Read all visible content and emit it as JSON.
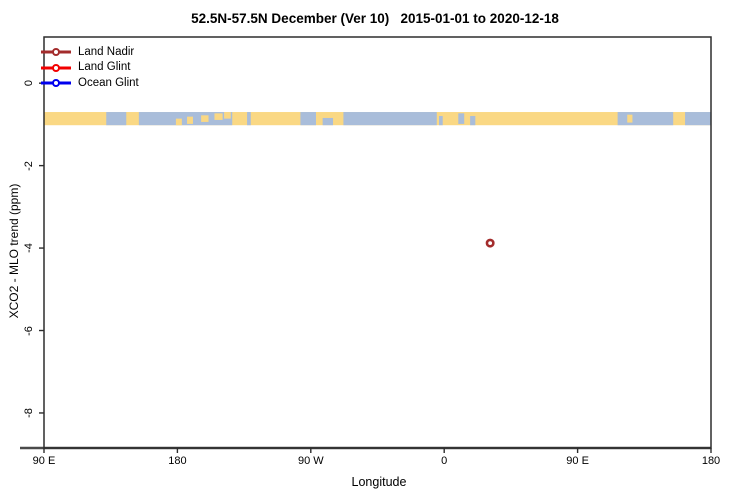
{
  "title": "52.5N-57.5N December (Ver 10)   2015-01-01 to 2020-12-18",
  "axes": {
    "xlabel": "Longitude",
    "ylabel": "XCO2 - MLO trend (ppm)"
  },
  "legend": {
    "items": [
      {
        "label": "Land Nadir",
        "color": "#A32C2C",
        "marker": "open-circle"
      },
      {
        "label": "Land Glint",
        "color": "#F20000",
        "marker": "open-circle"
      },
      {
        "label": "Ocean Glint",
        "color": "#0000EE",
        "marker": "open-circle"
      }
    ]
  },
  "chart_data": {
    "type": "scatter",
    "title": "52.5N-57.5N December (Ver 10)   2015-01-01 to 2020-12-18",
    "xlabel": "Longitude",
    "ylabel": "XCO2 - MLO trend (ppm)",
    "grid": false,
    "legend_position": "top-left",
    "x_axis": {
      "domain": [
        90,
        540
      ],
      "wraps_longitude": true,
      "ticks": [
        {
          "v": 90,
          "label": "90 E"
        },
        {
          "v": 180,
          "label": "180"
        },
        {
          "v": 270,
          "label": "90 W"
        },
        {
          "v": 360,
          "label": "0"
        },
        {
          "v": 450,
          "label": "90 E"
        },
        {
          "v": 540,
          "label": "180"
        }
      ]
    },
    "y_axis": {
      "domain": [
        1.12,
        -8.85
      ],
      "ticks": [
        {
          "v": 0,
          "label": "0"
        },
        {
          "v": -2,
          "label": "-2"
        },
        {
          "v": -4,
          "label": "-4"
        },
        {
          "v": -6,
          "label": "-6"
        },
        {
          "v": -8,
          "label": "-8"
        }
      ]
    },
    "series": [
      {
        "name": "Land Nadir",
        "color": "#A32C2C",
        "marker": "open-circle",
        "points": [
          {
            "x": 391,
            "lon_east_deg": 31,
            "y": -3.88
          }
        ]
      },
      {
        "name": "Land Glint",
        "color": "#F20000",
        "marker": "open-circle",
        "points": []
      },
      {
        "name": "Ocean Glint",
        "color": "#0000EE",
        "marker": "open-circle",
        "points": []
      }
    ],
    "map_band": {
      "description": "world coastline strip for 52.5N-57.5N",
      "y_top": -0.7,
      "y_bottom": -1.02,
      "land_color": "#FAD884",
      "ocean_color": "#A9BDDA",
      "ocean_segments": [
        {
          "x0": 132,
          "x1": 145.5
        },
        {
          "x0": 154,
          "x1": 217
        },
        {
          "x0": 227,
          "x1": 229.5
        },
        {
          "x0": 263,
          "x1": 273.5
        },
        {
          "x0": 278,
          "x1": 285,
          "t0": 0.45,
          "t1": 1
        },
        {
          "x0": 292,
          "x1": 355
        },
        {
          "x0": 356.5,
          "x1": 359,
          "t0": 0.3,
          "t1": 1
        },
        {
          "x0": 369.5,
          "x1": 373.5,
          "t0": 0.1,
          "t1": 0.9
        },
        {
          "x0": 377.5,
          "x1": 381,
          "t0": 0.3,
          "t1": 1
        },
        {
          "x0": 477,
          "x1": 514.5
        },
        {
          "x0": 522.5,
          "x1": 540
        }
      ],
      "land_patches": [
        {
          "x0": 179,
          "x1": 183,
          "t0": 0.5,
          "t1": 1
        },
        {
          "x0": 186.5,
          "x1": 190.5,
          "t0": 0.35,
          "t1": 0.9
        },
        {
          "x0": 196,
          "x1": 201,
          "t0": 0.25,
          "t1": 0.75
        },
        {
          "x0": 205,
          "x1": 210.5,
          "t0": 0.1,
          "t1": 0.6
        },
        {
          "x0": 211.5,
          "x1": 216,
          "t0": 0,
          "t1": 0.5
        },
        {
          "x0": 483.5,
          "x1": 487,
          "t0": 0.2,
          "t1": 0.8
        }
      ]
    }
  }
}
